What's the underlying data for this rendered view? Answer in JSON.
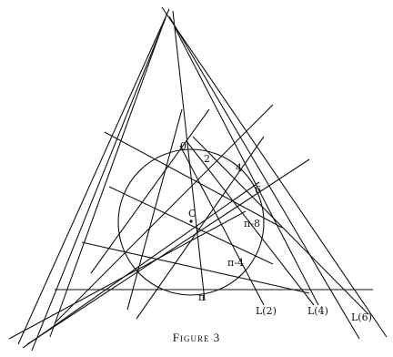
{
  "figure": {
    "caption": "Figure 3",
    "center_label": "C",
    "circle_points": [
      "0",
      "2",
      "4",
      "6",
      "π-8",
      "π-4",
      "π"
    ],
    "line_labels": [
      "L(2)",
      "L(4)",
      "L(6)"
    ]
  }
}
